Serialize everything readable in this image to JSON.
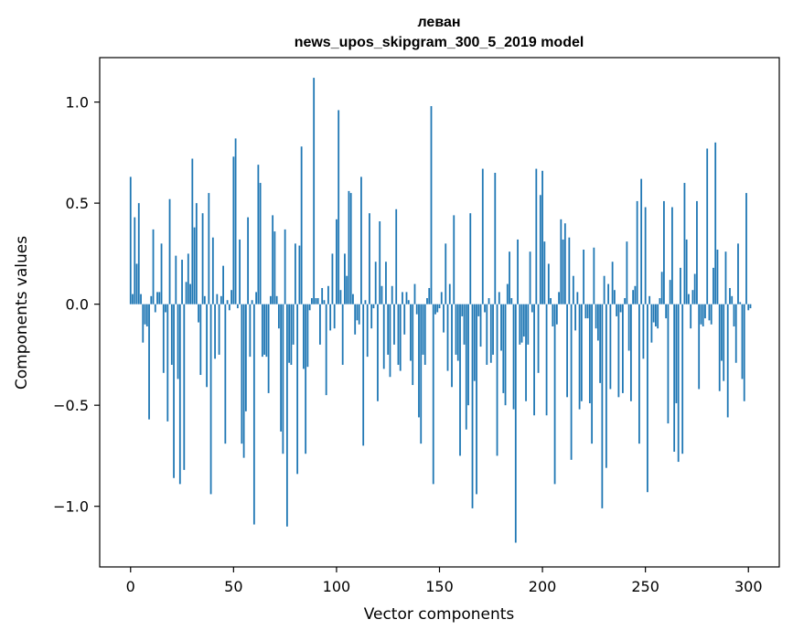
{
  "chart_data": {
    "type": "bar",
    "title": "леван",
    "subtitle": "news_upos_skipgram_300_5_2019 model",
    "xlabel": "Vector components",
    "ylabel": "Components values",
    "xlim": [
      -15,
      315
    ],
    "ylim": [
      -1.3,
      1.22
    ],
    "xticks": [
      0,
      50,
      100,
      150,
      200,
      250,
      300
    ],
    "xtick_labels": [
      "0",
      "50",
      "100",
      "150",
      "200",
      "250",
      "300"
    ],
    "yticks": [
      -1.0,
      -0.5,
      0.0,
      0.5,
      1.0
    ],
    "ytick_labels": [
      "−1.0",
      "−0.5",
      "0.0",
      "0.5",
      "1.0"
    ],
    "bar_color": "#1f77b4",
    "values": [
      0.63,
      0.05,
      0.43,
      0.2,
      0.5,
      0.05,
      -0.19,
      -0.1,
      -0.11,
      -0.57,
      0.04,
      0.37,
      -0.04,
      0.06,
      0.06,
      0.3,
      -0.34,
      -0.04,
      -0.58,
      0.52,
      -0.3,
      -0.86,
      0.24,
      -0.37,
      -0.89,
      0.22,
      -0.82,
      0.11,
      0.25,
      0.1,
      0.72,
      0.38,
      0.5,
      -0.09,
      -0.35,
      0.45,
      0.04,
      -0.41,
      0.55,
      -0.94,
      0.33,
      -0.27,
      0.05,
      -0.25,
      0.04,
      0.19,
      -0.69,
      0.02,
      -0.03,
      0.07,
      0.73,
      0.82,
      -0.02,
      0.32,
      -0.69,
      -0.76,
      -0.53,
      0.43,
      -0.26,
      0.02,
      -1.09,
      0.06,
      0.69,
      0.6,
      -0.26,
      -0.25,
      -0.26,
      -0.44,
      0.04,
      0.44,
      0.36,
      0.04,
      -0.12,
      -0.63,
      -0.74,
      0.37,
      -1.1,
      -0.29,
      -0.3,
      -0.2,
      0.3,
      -0.84,
      0.29,
      0.78,
      -0.32,
      -0.74,
      -0.31,
      -0.03,
      0.03,
      1.12,
      0.03,
      0.03,
      -0.2,
      0.08,
      0.02,
      -0.45,
      0.09,
      -0.13,
      0.25,
      -0.12,
      0.42,
      0.96,
      0.07,
      -0.3,
      0.25,
      0.14,
      0.56,
      0.55,
      0.05,
      -0.15,
      -0.08,
      -0.1,
      0.63,
      -0.7,
      0.02,
      -0.26,
      0.45,
      -0.12,
      -0.02,
      0.21,
      -0.48,
      0.41,
      0.09,
      -0.32,
      0.21,
      -0.25,
      -0.36,
      0.09,
      -0.2,
      0.47,
      -0.3,
      -0.33,
      0.06,
      -0.15,
      0.06,
      0.02,
      -0.28,
      -0.4,
      0.1,
      -0.05,
      -0.56,
      -0.69,
      -0.25,
      -0.3,
      0.03,
      0.08,
      0.98,
      -0.89,
      -0.05,
      -0.04,
      -0.02,
      0.06,
      -0.14,
      0.3,
      -0.33,
      0.1,
      -0.41,
      0.44,
      -0.25,
      -0.28,
      -0.75,
      -0.06,
      -0.2,
      -0.62,
      -0.5,
      0.45,
      -1.01,
      -0.38,
      -0.94,
      -0.06,
      -0.21,
      0.67,
      -0.04,
      -0.3,
      0.03,
      -0.29,
      -0.25,
      0.65,
      -0.75,
      0.06,
      -0.23,
      -0.44,
      -0.5,
      0.1,
      0.26,
      0.03,
      -0.52,
      -1.18,
      0.32,
      -0.2,
      -0.19,
      -0.16,
      -0.48,
      -0.2,
      0.26,
      -0.04,
      -0.55,
      0.67,
      -0.34,
      0.54,
      0.66,
      0.31,
      -0.55,
      0.2,
      0.03,
      -0.11,
      -0.89,
      -0.1,
      0.06,
      0.42,
      0.32,
      0.4,
      -0.46,
      0.33,
      -0.77,
      0.14,
      -0.13,
      0.06,
      -0.52,
      -0.48,
      0.27,
      -0.07,
      -0.07,
      -0.49,
      -0.69,
      0.28,
      -0.12,
      -0.18,
      -0.39,
      -1.01,
      0.14,
      -0.81,
      0.1,
      -0.42,
      0.21,
      0.07,
      -0.06,
      -0.46,
      -0.04,
      -0.44,
      0.03,
      0.31,
      -0.23,
      -0.48,
      0.07,
      0.09,
      0.51,
      -0.69,
      0.62,
      -0.27,
      0.48,
      -0.93,
      0.04,
      -0.19,
      -0.09,
      -0.11,
      -0.12,
      0.03,
      0.16,
      0.51,
      -0.07,
      -0.59,
      0.12,
      0.48,
      -0.73,
      -0.49,
      -0.78,
      0.18,
      -0.74,
      0.6,
      0.32,
      0.05,
      -0.12,
      0.07,
      0.15,
      0.51,
      -0.42,
      -0.1,
      -0.11,
      -0.07,
      0.77,
      -0.08,
      -0.1,
      0.18,
      0.8,
      0.27,
      -0.43,
      -0.28,
      -0.38,
      0.26,
      -0.56,
      0.08,
      0.04,
      -0.11,
      -0.29,
      0.3,
      0.01,
      -0.37,
      -0.48,
      0.55,
      -0.03,
      -0.02
    ]
  }
}
